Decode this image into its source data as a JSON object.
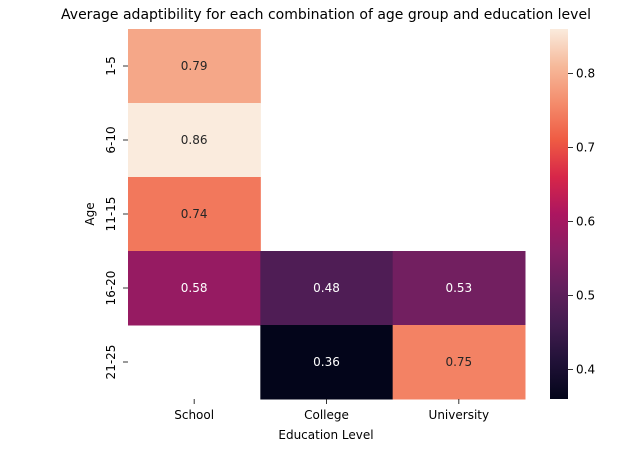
{
  "chart_data": {
    "type": "heatmap",
    "title": "Average adaptibility for each combination of age group and education level",
    "xlabel": "Education Level",
    "ylabel": "Age",
    "x_categories": [
      "School",
      "College",
      "University"
    ],
    "y_categories": [
      "1-5",
      "6-10",
      "11-15",
      "16-20",
      "21-25"
    ],
    "values": [
      [
        0.79,
        null,
        null
      ],
      [
        0.86,
        null,
        null
      ],
      [
        0.74,
        null,
        null
      ],
      [
        0.58,
        0.48,
        0.53
      ],
      [
        null,
        0.36,
        0.75
      ]
    ],
    "annotations": [
      [
        "0.79",
        "",
        ""
      ],
      [
        "0.86",
        "",
        ""
      ],
      [
        "0.74",
        "",
        ""
      ],
      [
        "0.58",
        "0.48",
        "0.53"
      ],
      [
        "",
        "0.36",
        "0.75"
      ]
    ],
    "colormap": "rocket",
    "vmin": 0.36,
    "vmax": 0.86,
    "colorbar": {
      "ticks": [
        0.4,
        0.5,
        0.6,
        0.7,
        0.8
      ],
      "tick_labels": [
        "0.4",
        "0.5",
        "0.6",
        "0.7",
        "0.8"
      ]
    },
    "grid": false,
    "legend": "colorbar-right"
  }
}
